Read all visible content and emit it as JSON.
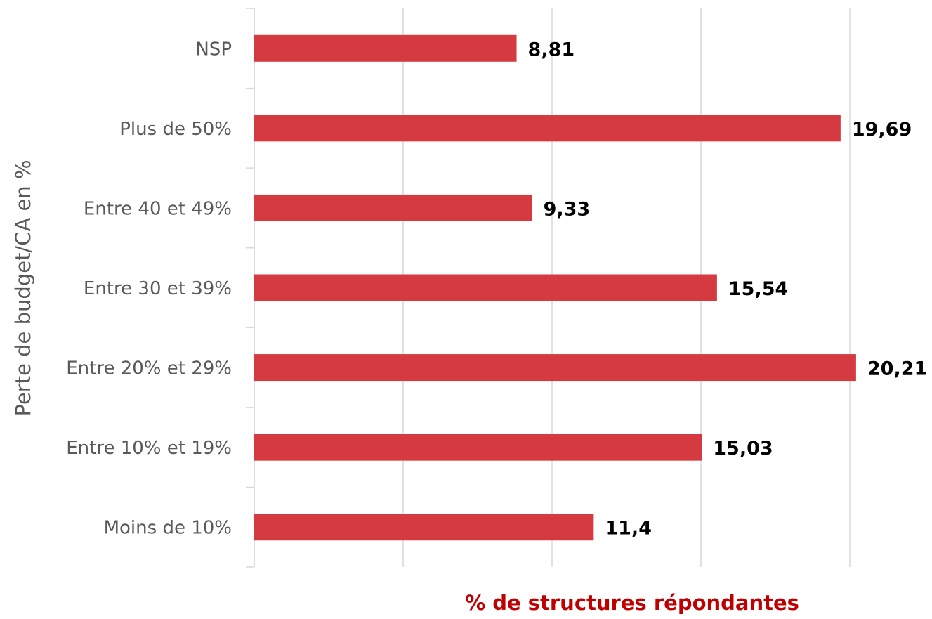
{
  "chart_data": {
    "type": "barh",
    "xlabel": "% de structures répondantes",
    "ylabel": "Perte de budget/CA en %",
    "categories": [
      "NSP",
      "Plus de 50%",
      "Entre 40 et 49%",
      "Entre 30 et 39%",
      "Entre 20% et 29%",
      "Entre 10% et 19%",
      "Moins de 10%"
    ],
    "values": [
      8.81,
      19.69,
      9.33,
      15.54,
      20.21,
      15.03,
      11.4
    ],
    "value_labels": [
      "8,81",
      "19,69",
      "9,33",
      "15,54",
      "20,21",
      "15,03",
      "11,4"
    ],
    "color": "#d63a41",
    "xlim": [
      0,
      20
    ],
    "xticks": [
      0,
      5,
      10,
      15,
      20
    ],
    "grid": true
  }
}
